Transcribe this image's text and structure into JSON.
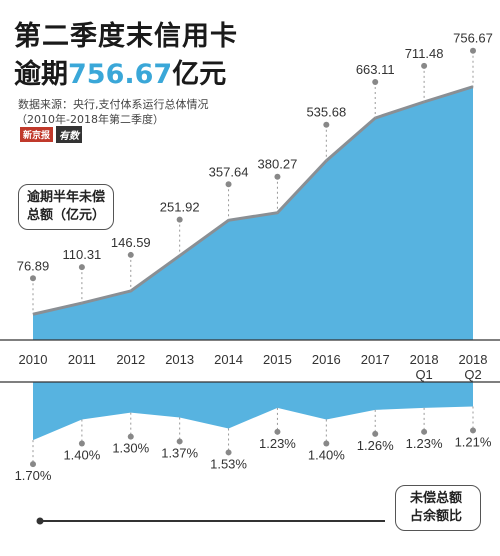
{
  "header": {
    "title_line1": "第二季度末信用卡",
    "title_line2_prefix": "逾期",
    "title_line2_value": "756.67",
    "title_line2_suffix": "亿元",
    "source": "数据来源：央行,支付体系运行总体情况",
    "period": "（2010年-2018年第二季度）",
    "logo_left": "新京报",
    "logo_right": "有数"
  },
  "legend_boxes": {
    "top_line1": "逾期半年未偿",
    "top_line2": "总额（亿元）",
    "bottom_line1": "未偿总额",
    "bottom_line2": "占余额比"
  },
  "colors": {
    "area_fill": "#57b3e0",
    "area_line": "#8a8f94",
    "highlight_text": "#3aa7d8"
  },
  "chart_data": [
    {
      "type": "area",
      "title": "第二季度末信用卡逾期756.67亿元",
      "ylabel": "逾期半年未偿总额（亿元）",
      "categories": [
        {
          "line1": "2010",
          "line2": ""
        },
        {
          "line1": "2011",
          "line2": ""
        },
        {
          "line1": "2012",
          "line2": ""
        },
        {
          "line1": "2013",
          "line2": ""
        },
        {
          "line1": "2014",
          "line2": ""
        },
        {
          "line1": "2015",
          "line2": ""
        },
        {
          "line1": "2016",
          "line2": ""
        },
        {
          "line1": "2017",
          "line2": ""
        },
        {
          "line1": "2018",
          "line2": "Q1"
        },
        {
          "line1": "2018",
          "line2": "Q2"
        }
      ],
      "values": [
        76.89,
        110.31,
        146.59,
        251.92,
        357.64,
        380.27,
        535.68,
        663.11,
        711.48,
        756.67
      ],
      "labels": [
        "76.89",
        "110.31",
        "146.59",
        "251.92",
        "357.64",
        "380.27",
        "535.68",
        "663.11",
        "711.48",
        "756.67"
      ],
      "ylim": [
        0,
        800
      ]
    },
    {
      "type": "area",
      "ylabel": "未偿总额占余额比",
      "categories": [
        "2010",
        "2011",
        "2012",
        "2013",
        "2014",
        "2015",
        "2016",
        "2017",
        "2018 Q1",
        "2018 Q2"
      ],
      "values": [
        1.7,
        1.4,
        1.3,
        1.37,
        1.53,
        1.23,
        1.4,
        1.26,
        1.23,
        1.21
      ],
      "labels": [
        "1.70%",
        "1.40%",
        "1.30%",
        "1.37%",
        "1.53%",
        "1.23%",
        "1.40%",
        "1.26%",
        "1.23%",
        "1.21%"
      ],
      "ylim": [
        1.0,
        1.8
      ]
    }
  ]
}
